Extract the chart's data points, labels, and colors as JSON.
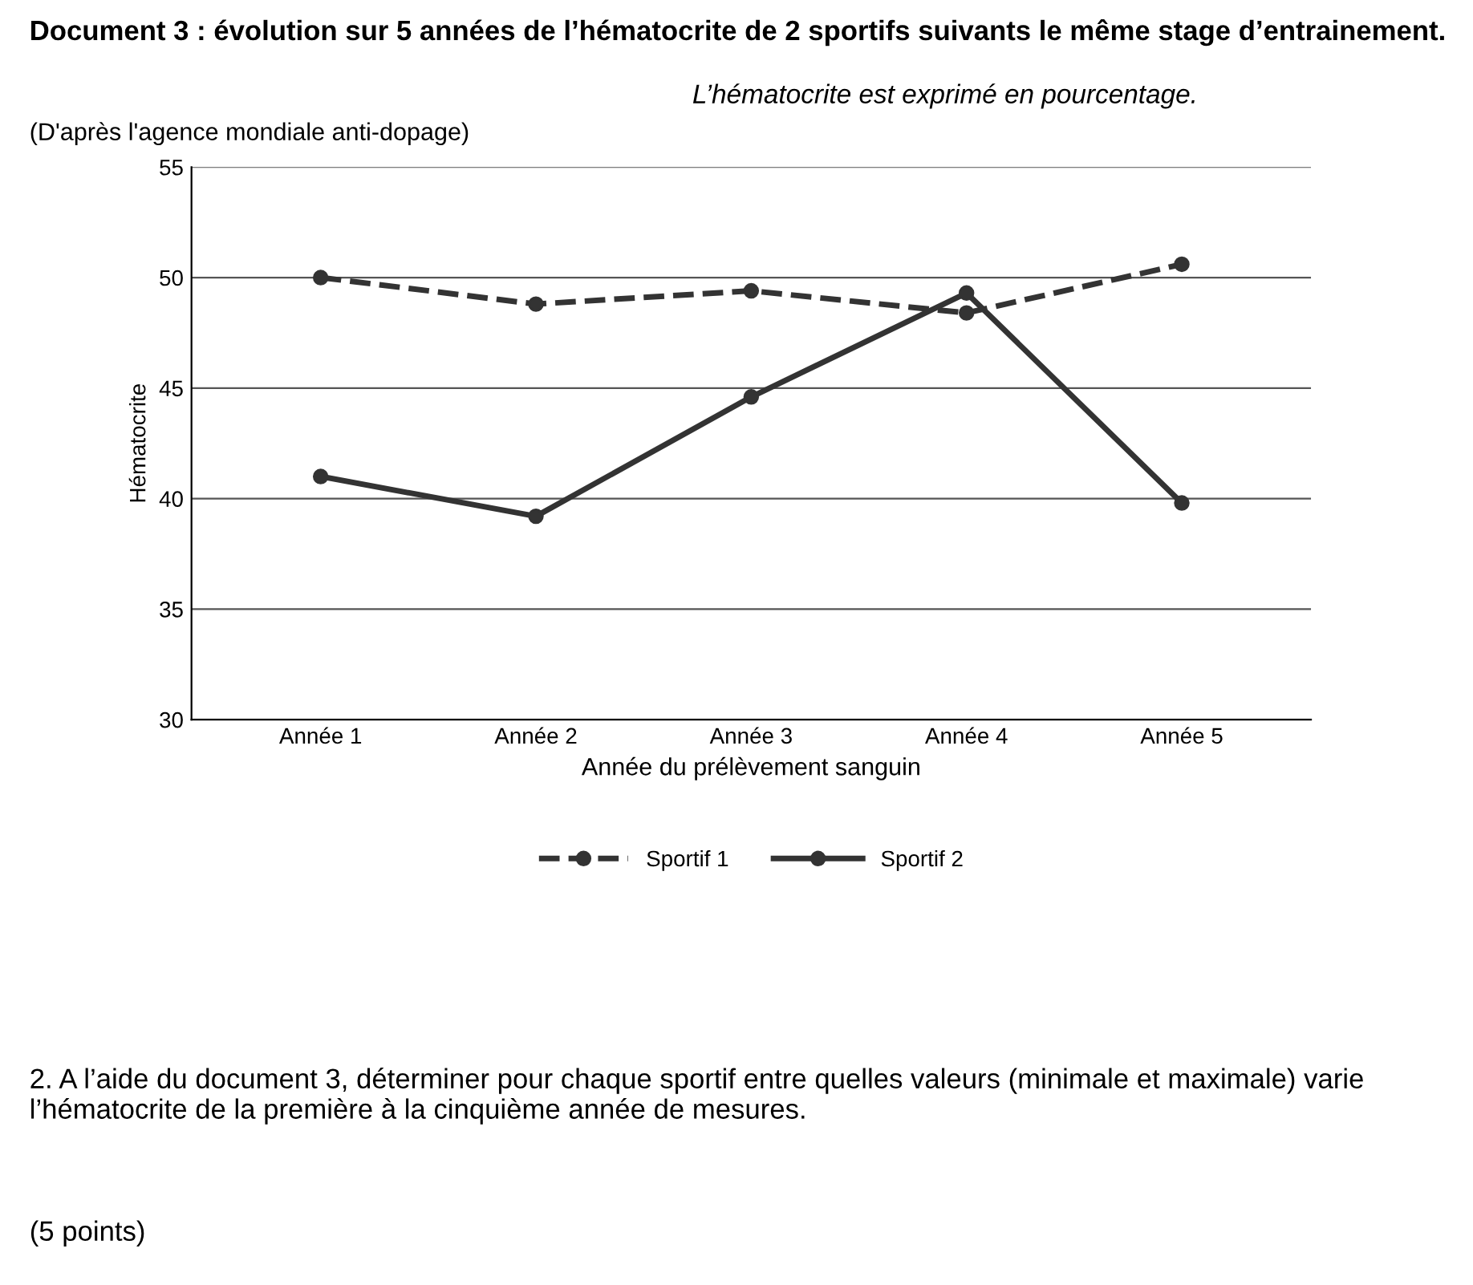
{
  "chart_data": {
    "type": "line",
    "title": "Document 3 : évolution sur 5 années de l’hématocrite de 2 sportifs suivants le même stage d’entrainement.",
    "subtitle": "L’hématocrite est exprimé en pourcentage.",
    "xlabel": "Année du prélèvement sanguin",
    "ylabel": "Hématocrite",
    "categories": [
      "Année 1",
      "Année 2",
      "Année 3",
      "Année 4",
      "Année 5"
    ],
    "series": [
      {
        "name": "Sportif 1",
        "color": "#333333",
        "line_style": "dashed",
        "values": [
          50,
          48.8,
          49.4,
          48.4,
          50.6
        ]
      },
      {
        "name": "Sportif 2",
        "color": "#333333",
        "line_style": "solid",
        "values": [
          41,
          39.2,
          44.6,
          49.3,
          39.8
        ]
      }
    ],
    "ylim": [
      30,
      55
    ],
    "yticks": [
      30,
      35,
      40,
      45,
      50,
      55
    ],
    "grid": "y",
    "marker": "circle",
    "legend": "bottom",
    "annotations": [
      "(D'après l'agence mondiale anti-dopage)",
      "2. A l’aide du document 3, déterminer pour chaque sportif entre quelles valeurs (minimale et maximale) varie l’hématocrite de la première à la cinquième année de mesures.",
      "(5 points)"
    ]
  }
}
